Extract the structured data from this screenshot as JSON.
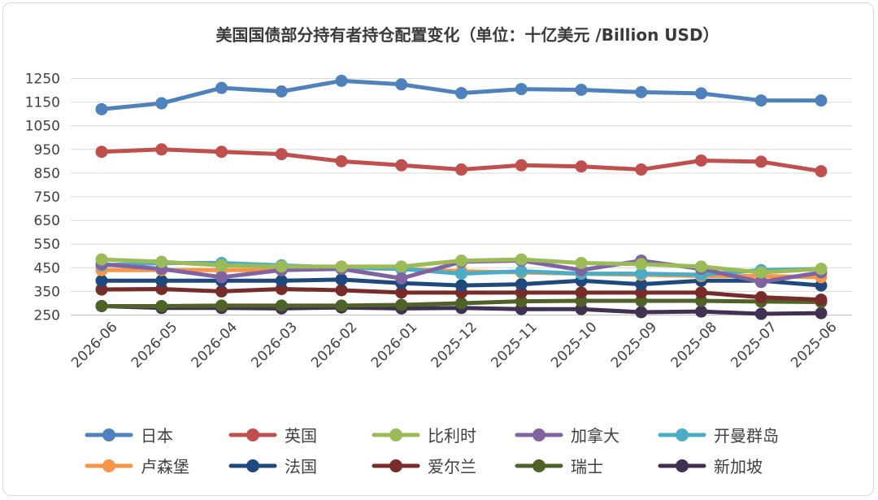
{
  "chart_data": {
    "type": "line",
    "title": "美国国债部分持有者持仓配置变化（单位：十亿美元 /Billion USD）",
    "xlabel": "",
    "ylabel": "",
    "ylim": [
      250,
      1250
    ],
    "yticks": [
      250,
      350,
      450,
      550,
      650,
      750,
      850,
      950,
      1050,
      1150,
      1250
    ],
    "yticks_extra": [
      1250
    ],
    "grid": "horizontal",
    "legend_position": "bottom",
    "categories": [
      "2026-06",
      "2026-05",
      "2026-04",
      "2026-03",
      "2026-02",
      "2026-01",
      "2025-12",
      "2025-11",
      "2025-10",
      "2025-09",
      "2025-08",
      "2025-07",
      "2025-06"
    ],
    "series": [
      {
        "name": "日本",
        "color": "#4f81bd",
        "values": [
          1120,
          1145,
          1210,
          1195,
          1240,
          1225,
          1188,
          1205,
          1202,
          1192,
          1187,
          1157,
          1157
        ]
      },
      {
        "name": "英国",
        "color": "#c0504d",
        "values": [
          940,
          950,
          940,
          930,
          900,
          883,
          865,
          883,
          878,
          865,
          903,
          898,
          858
        ]
      },
      {
        "name": "比利时",
        "color": "#9bbb59",
        "values": [
          485,
          475,
          460,
          455,
          455,
          455,
          480,
          485,
          470,
          465,
          455,
          430,
          445
        ]
      },
      {
        "name": "加拿大",
        "color": "#8064a2",
        "values": [
          465,
          445,
          410,
          440,
          445,
          405,
          475,
          480,
          440,
          480,
          445,
          390,
          430
        ]
      },
      {
        "name": "开曼群岛",
        "color": "#4bacc6",
        "values": [
          460,
          470,
          470,
          460,
          450,
          445,
          425,
          435,
          425,
          425,
          420,
          440,
          445
        ]
      },
      {
        "name": "卢森堡",
        "color": "#f79646",
        "values": [
          440,
          440,
          440,
          440,
          450,
          445,
          435,
          430,
          425,
          420,
          415,
          415,
          410
        ]
      },
      {
        "name": "法国",
        "color": "#1f497d",
        "values": [
          395,
          395,
          395,
          395,
          400,
          385,
          375,
          380,
          395,
          380,
          395,
          395,
          375
        ]
      },
      {
        "name": "爱尔兰",
        "color": "#772c2a",
        "values": [
          358,
          360,
          350,
          360,
          355,
          345,
          345,
          345,
          345,
          345,
          345,
          325,
          315
        ]
      },
      {
        "name": "瑞士",
        "color": "#4f6228",
        "values": [
          288,
          288,
          290,
          290,
          290,
          293,
          300,
          308,
          310,
          310,
          310,
          307,
          305
        ]
      },
      {
        "name": "新加坡",
        "color": "#403152",
        "values": [
          288,
          280,
          280,
          278,
          282,
          278,
          280,
          275,
          275,
          262,
          265,
          255,
          258
        ]
      }
    ]
  }
}
